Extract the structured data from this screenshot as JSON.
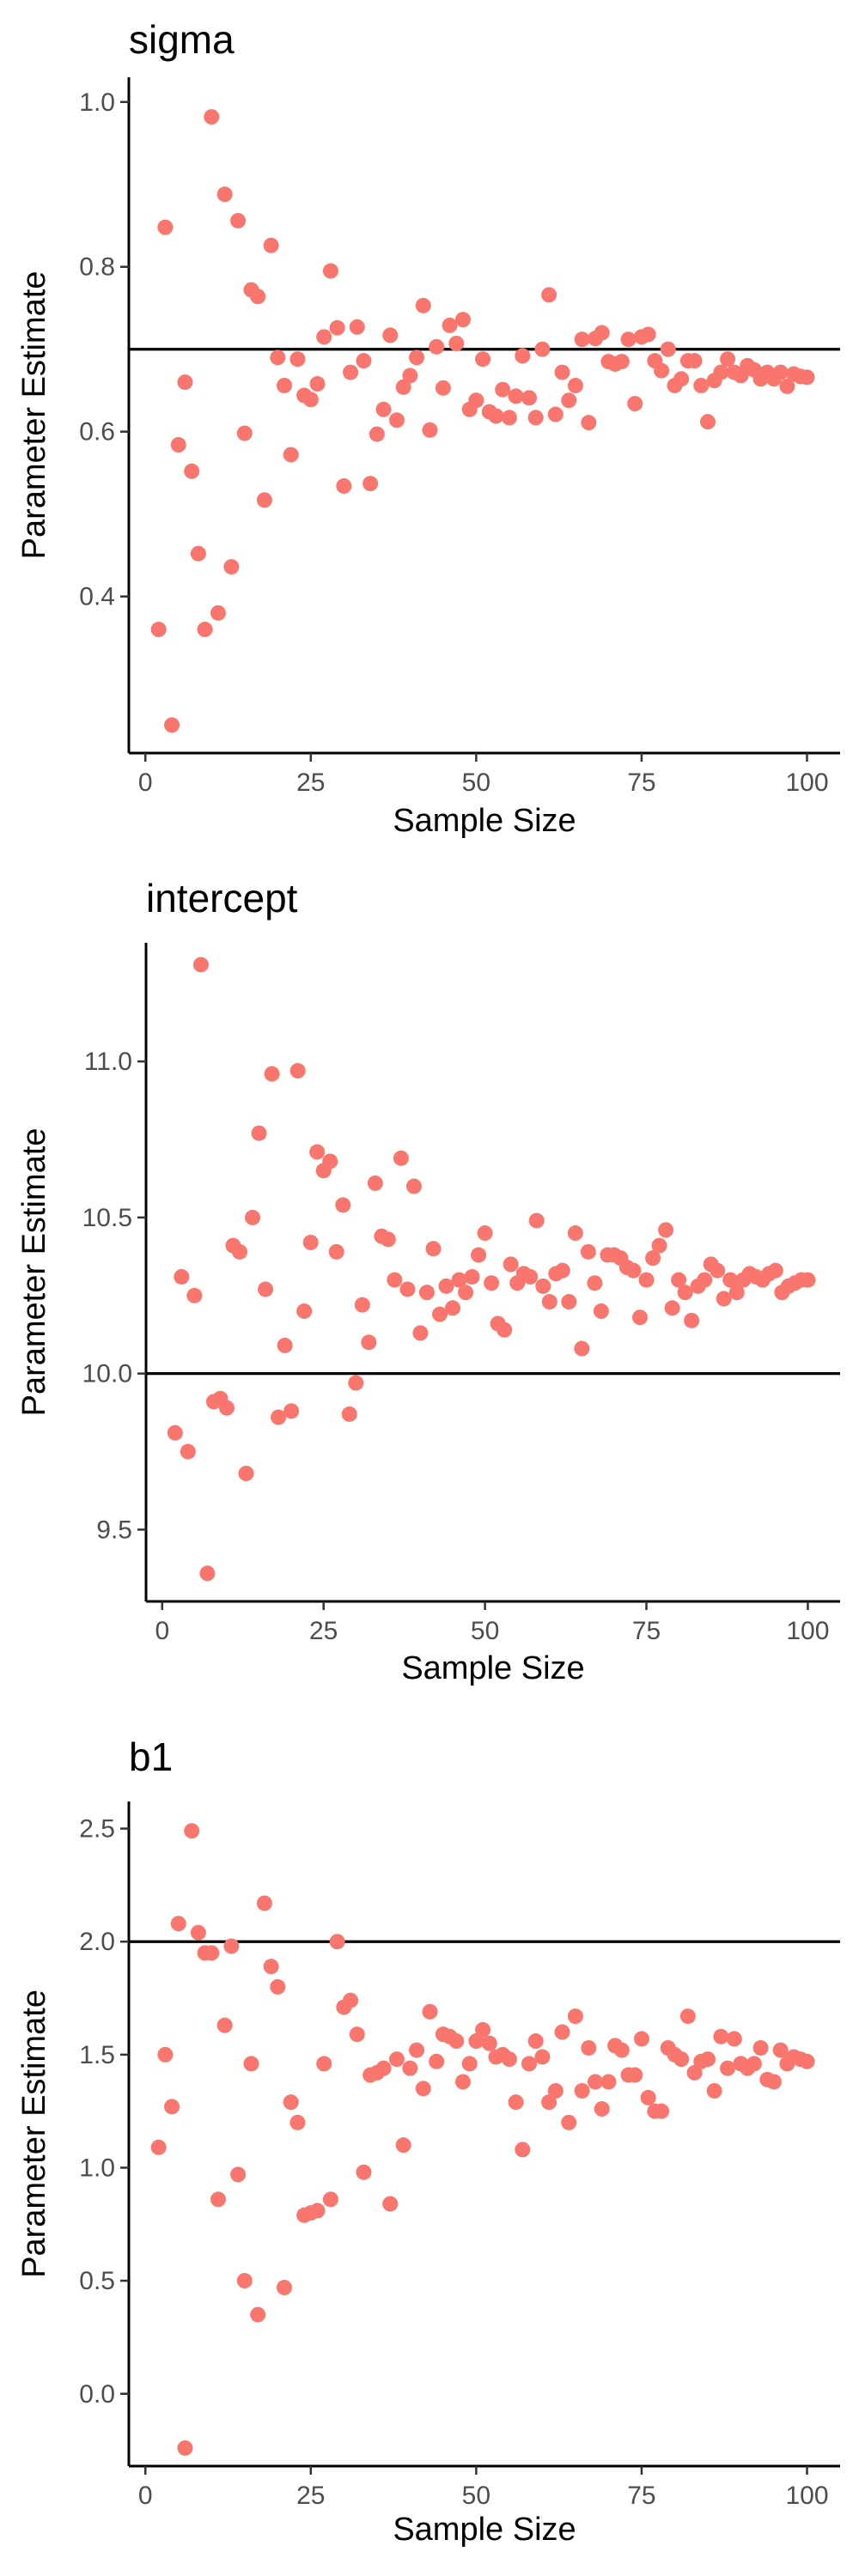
{
  "axis_labels": {
    "x": "Sample Size",
    "y": "Parameter Estimate"
  },
  "colors": {
    "point": "#F8766D",
    "reference_line": "#000000",
    "axis": "#000000",
    "tick_label": "#4d4d4d"
  },
  "chart_data": [
    {
      "type": "scatter",
      "title": "sigma",
      "xlabel": "Sample Size",
      "ylabel": "Parameter Estimate",
      "xlim": [
        -2.5,
        105
      ],
      "ylim": [
        0.21,
        1.03
      ],
      "xticks": [
        0,
        25,
        50,
        75,
        100
      ],
      "xtick_labels": [
        "0",
        "25",
        "50",
        "75",
        "100"
      ],
      "yticks": [
        0.4,
        0.6,
        0.8,
        1.0
      ],
      "ytick_labels": [
        "0.4",
        "0.6",
        "0.8",
        "1.0"
      ],
      "reference_line": 0.7,
      "grid": false,
      "x": [
        2,
        3,
        4,
        5,
        6,
        7,
        8,
        9,
        10,
        11,
        12,
        13,
        14,
        15,
        16,
        17,
        18,
        19,
        20,
        21,
        22,
        23,
        24,
        25,
        26,
        27,
        28,
        29,
        30,
        31,
        32,
        33,
        34,
        35,
        36,
        37,
        38,
        39,
        40,
        41,
        42,
        43,
        44,
        45,
        46,
        47,
        48,
        49,
        50,
        51,
        52,
        53,
        54,
        55,
        56,
        57,
        58,
        59,
        60,
        61,
        62,
        63,
        64,
        65,
        66,
        67,
        68,
        69,
        70,
        71,
        72,
        73,
        74,
        75,
        76,
        77,
        78,
        79,
        80,
        81,
        82,
        83,
        84,
        85,
        86,
        87,
        88,
        89,
        90,
        91,
        92,
        93,
        94,
        95,
        96,
        97,
        98,
        99,
        100
      ],
      "y": [
        0.36,
        0.848,
        0.244,
        0.584,
        0.66,
        0.552,
        0.452,
        0.36,
        0.982,
        0.38,
        0.888,
        0.436,
        0.856,
        0.598,
        0.772,
        0.764,
        0.517,
        0.826,
        0.69,
        0.656,
        0.572,
        0.688,
        0.644,
        0.639,
        0.658,
        0.715,
        0.795,
        0.726,
        0.534,
        0.672,
        0.727,
        0.686,
        0.537,
        0.597,
        0.627,
        0.717,
        0.614,
        0.654,
        0.668,
        0.69,
        0.753,
        0.602,
        0.703,
        0.653,
        0.729,
        0.707,
        0.736,
        0.627,
        0.638,
        0.688,
        0.624,
        0.619,
        0.651,
        0.617,
        0.643,
        0.692,
        0.641,
        0.617,
        0.7,
        0.766,
        0.621,
        0.672,
        0.638,
        0.656,
        0.712,
        0.611,
        0.713,
        0.72,
        0.685,
        0.682,
        0.685,
        0.712,
        0.634,
        0.715,
        0.718,
        0.686,
        0.674,
        0.7,
        0.656,
        0.664,
        0.686,
        0.686,
        0.656,
        0.612,
        0.662,
        0.672,
        0.688,
        0.672,
        0.668,
        0.68,
        0.675,
        0.664,
        0.672,
        0.664,
        0.672,
        0.655,
        0.67,
        0.667,
        0.666
      ]
    },
    {
      "type": "scatter",
      "title": "intercept",
      "xlabel": "Sample Size",
      "ylabel": "Parameter Estimate",
      "xlim": [
        -2.5,
        105
      ],
      "ylim": [
        9.27,
        11.38
      ],
      "xticks": [
        0,
        25,
        50,
        75,
        100
      ],
      "xtick_labels": [
        "0",
        "25",
        "50",
        "75",
        "100"
      ],
      "yticks": [
        9.5,
        10.0,
        10.5,
        11.0
      ],
      "ytick_labels": [
        "9.5",
        "10.0",
        "10.5",
        "11.0"
      ],
      "reference_line": 10.0,
      "grid": false,
      "x": [
        2,
        3,
        4,
        5,
        6,
        7,
        8,
        9,
        10,
        11,
        12,
        13,
        14,
        15,
        16,
        17,
        18,
        19,
        20,
        21,
        22,
        23,
        24,
        25,
        26,
        27,
        28,
        29,
        30,
        31,
        32,
        33,
        34,
        35,
        36,
        37,
        38,
        39,
        40,
        41,
        42,
        43,
        44,
        45,
        46,
        47,
        48,
        49,
        50,
        51,
        52,
        53,
        54,
        55,
        56,
        57,
        58,
        59,
        60,
        61,
        62,
        63,
        64,
        65,
        66,
        67,
        68,
        69,
        70,
        71,
        72,
        73,
        74,
        75,
        76,
        77,
        78,
        79,
        80,
        81,
        82,
        83,
        84,
        85,
        86,
        87,
        88,
        89,
        90,
        91,
        92,
        93,
        94,
        95,
        96,
        97,
        98,
        99,
        100
      ],
      "y": [
        9.81,
        10.31,
        9.75,
        10.25,
        11.31,
        9.36,
        9.91,
        9.92,
        9.89,
        10.41,
        10.39,
        9.68,
        10.5,
        10.77,
        10.27,
        10.96,
        9.86,
        10.09,
        9.88,
        10.97,
        10.2,
        10.42,
        10.71,
        10.65,
        10.68,
        10.39,
        10.54,
        9.87,
        9.97,
        10.22,
        10.1,
        10.61,
        10.44,
        10.43,
        10.3,
        10.69,
        10.27,
        10.6,
        10.13,
        10.26,
        10.4,
        10.19,
        10.28,
        10.21,
        10.3,
        10.26,
        10.31,
        10.38,
        10.45,
        10.29,
        10.16,
        10.14,
        10.35,
        10.29,
        10.32,
        10.31,
        10.49,
        10.28,
        10.23,
        10.32,
        10.33,
        10.23,
        10.45,
        10.08,
        10.39,
        10.29,
        10.2,
        10.38,
        10.38,
        10.37,
        10.34,
        10.33,
        10.18,
        10.3,
        10.37,
        10.41,
        10.46,
        10.21,
        10.3,
        10.26,
        10.17,
        10.28,
        10.3,
        10.35,
        10.33,
        10.24,
        10.3,
        10.26,
        10.3,
        10.32,
        10.31,
        10.3,
        10.32,
        10.33,
        10.26,
        10.28,
        10.29,
        10.3,
        10.3
      ]
    },
    {
      "type": "scatter",
      "title": "b1",
      "xlabel": "Sample Size",
      "ylabel": "Parameter Estimate",
      "xlim": [
        -2.5,
        105
      ],
      "ylim": [
        -0.32,
        2.62
      ],
      "xticks": [
        0,
        25,
        50,
        75,
        100
      ],
      "xtick_labels": [
        "0",
        "25",
        "50",
        "75",
        "100"
      ],
      "yticks": [
        0.0,
        0.5,
        1.0,
        1.5,
        2.0,
        2.5
      ],
      "ytick_labels": [
        "0.0",
        "0.5",
        "1.0",
        "1.5",
        "2.0",
        "2.5"
      ],
      "reference_line": 2.0,
      "grid": false,
      "x": [
        2,
        3,
        4,
        5,
        6,
        7,
        8,
        9,
        10,
        11,
        12,
        13,
        14,
        15,
        16,
        17,
        18,
        19,
        20,
        21,
        22,
        23,
        24,
        25,
        26,
        27,
        28,
        29,
        30,
        31,
        32,
        33,
        34,
        35,
        36,
        37,
        38,
        39,
        40,
        41,
        42,
        43,
        44,
        45,
        46,
        47,
        48,
        49,
        50,
        51,
        52,
        53,
        54,
        55,
        56,
        57,
        58,
        59,
        60,
        61,
        62,
        63,
        64,
        65,
        66,
        67,
        68,
        69,
        70,
        71,
        72,
        73,
        74,
        75,
        76,
        77,
        78,
        79,
        80,
        81,
        82,
        83,
        84,
        85,
        86,
        87,
        88,
        89,
        90,
        91,
        92,
        93,
        94,
        95,
        96,
        97,
        98,
        99,
        100
      ],
      "y": [
        1.09,
        1.5,
        1.27,
        2.08,
        -0.24,
        2.49,
        2.04,
        1.95,
        1.95,
        0.86,
        1.63,
        1.98,
        0.97,
        0.5,
        1.46,
        0.35,
        2.17,
        1.89,
        1.8,
        0.47,
        1.29,
        1.2,
        0.79,
        0.8,
        0.81,
        1.46,
        0.86,
        2.0,
        1.71,
        1.74,
        1.59,
        0.98,
        1.41,
        1.42,
        1.44,
        0.84,
        1.48,
        1.1,
        1.44,
        1.52,
        1.35,
        1.69,
        1.47,
        1.59,
        1.58,
        1.56,
        1.38,
        1.46,
        1.56,
        1.61,
        1.55,
        1.49,
        1.5,
        1.48,
        1.29,
        1.08,
        1.46,
        1.56,
        1.49,
        1.29,
        1.34,
        1.6,
        1.2,
        1.67,
        1.34,
        1.53,
        1.38,
        1.26,
        1.38,
        1.54,
        1.52,
        1.41,
        1.41,
        1.57,
        1.31,
        1.25,
        1.25,
        1.53,
        1.5,
        1.48,
        1.67,
        1.42,
        1.47,
        1.48,
        1.34,
        1.58,
        1.44,
        1.57,
        1.46,
        1.44,
        1.46,
        1.53,
        1.39,
        1.38,
        1.52,
        1.46,
        1.49,
        1.48,
        1.47
      ]
    }
  ]
}
